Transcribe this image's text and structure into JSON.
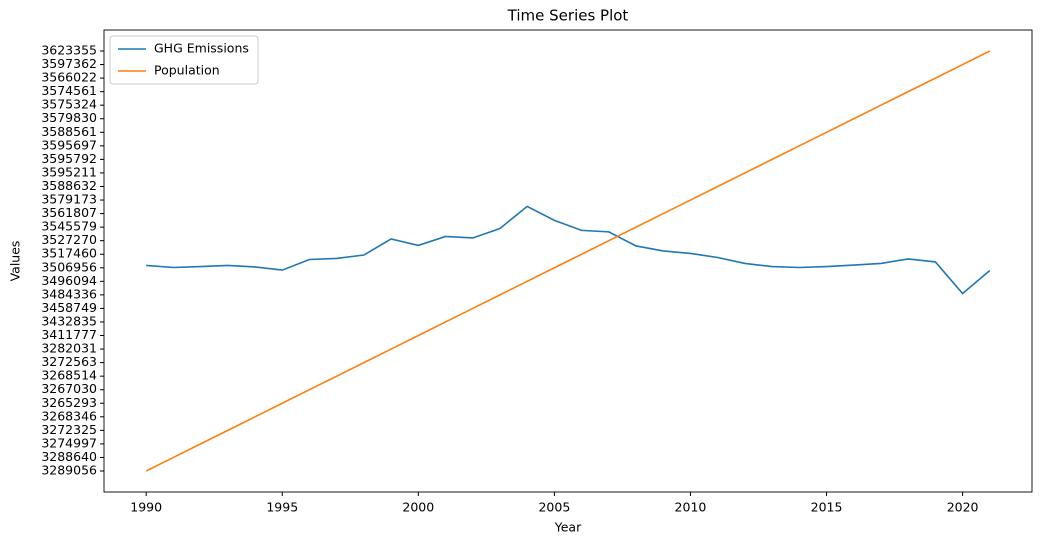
{
  "chart_data": {
    "type": "line",
    "title": "Time Series Plot",
    "x_label": "Year",
    "y_label": "Values",
    "x": [
      1990,
      1991,
      1992,
      1993,
      1994,
      1995,
      1996,
      1997,
      1998,
      1999,
      2000,
      2001,
      2002,
      2003,
      2004,
      2005,
      2006,
      2007,
      2008,
      2009,
      2010,
      2011,
      2012,
      2013,
      2014,
      2015,
      2016,
      2017,
      2018,
      2019,
      2020,
      2021
    ],
    "series": [
      {
        "name": "GHG Emissions",
        "color": "#1f77b4",
        "values": [
          15.17,
          15.02,
          15.09,
          15.17,
          15.06,
          14.83,
          15.61,
          15.69,
          15.94,
          17.13,
          16.65,
          17.31,
          17.2,
          17.9,
          19.53,
          18.5,
          17.76,
          17.65,
          16.61,
          16.24,
          16.06,
          15.76,
          15.32,
          15.09,
          15.02,
          15.09,
          15.2,
          15.32,
          15.65,
          15.43,
          13.1,
          14.8
        ]
      },
      {
        "name": "Population",
        "color": "#ff7f0e",
        "values": [
          0,
          1,
          2,
          3,
          4,
          5,
          6,
          7,
          8,
          9,
          10,
          11,
          12,
          13,
          14,
          15,
          16,
          17,
          18,
          19,
          20,
          21,
          22,
          23,
          24,
          25,
          26,
          27,
          28,
          29,
          30,
          31
        ]
      }
    ],
    "xlim": [
      1988.45,
      2022.55
    ],
    "xticks": [
      1990,
      1995,
      2000,
      2005,
      2010,
      2015,
      2020
    ],
    "ylim": [
      -1.55,
      32.55
    ],
    "yticks": [
      {
        "value": 0,
        "label": "3289056"
      },
      {
        "value": 1,
        "label": "3288640"
      },
      {
        "value": 2,
        "label": "3274997"
      },
      {
        "value": 3,
        "label": "3272325"
      },
      {
        "value": 4,
        "label": "3268346"
      },
      {
        "value": 5,
        "label": "3265293"
      },
      {
        "value": 6,
        "label": "3267030"
      },
      {
        "value": 7,
        "label": "3268514"
      },
      {
        "value": 8,
        "label": "3272563"
      },
      {
        "value": 9,
        "label": "3282031"
      },
      {
        "value": 10,
        "label": "3411777"
      },
      {
        "value": 11,
        "label": "3432835"
      },
      {
        "value": 12,
        "label": "3458749"
      },
      {
        "value": 13,
        "label": "3484336"
      },
      {
        "value": 14,
        "label": "3496094"
      },
      {
        "value": 15,
        "label": "3506956"
      },
      {
        "value": 16,
        "label": "3517460"
      },
      {
        "value": 17,
        "label": "3527270"
      },
      {
        "value": 18,
        "label": "3545579"
      },
      {
        "value": 19,
        "label": "3561807"
      },
      {
        "value": 20,
        "label": "3579173"
      },
      {
        "value": 21,
        "label": "3588632"
      },
      {
        "value": 22,
        "label": "3595211"
      },
      {
        "value": 23,
        "label": "3595792"
      },
      {
        "value": 24,
        "label": "3595697"
      },
      {
        "value": 25,
        "label": "3588561"
      },
      {
        "value": 26,
        "label": "3579830"
      },
      {
        "value": 27,
        "label": "3575324"
      },
      {
        "value": 28,
        "label": "3574561"
      },
      {
        "value": 29,
        "label": "3566022"
      },
      {
        "value": 30,
        "label": "3597362"
      },
      {
        "value": 31,
        "label": "3623355"
      }
    ],
    "legend": "upper left",
    "grid": false
  }
}
